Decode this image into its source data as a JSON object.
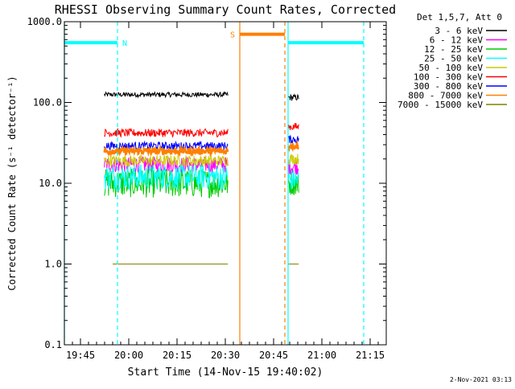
{
  "chart_data": {
    "type": "line",
    "title": "RHESSI Observing Summary Count Rates, Corrected",
    "xlabel": "Start Time (14-Nov-15 19:40:02)",
    "ylabel": "Corrected Count Rate (s⁻¹ detector⁻¹)",
    "yscale": "log",
    "ylim": [
      0.1,
      1000
    ],
    "xlim_minutes": [
      0,
      100
    ],
    "x_ticks": [
      {
        "t": 5,
        "label": "19:45"
      },
      {
        "t": 20,
        "label": "20:00"
      },
      {
        "t": 35,
        "label": "20:15"
      },
      {
        "t": 50,
        "label": "20:30"
      },
      {
        "t": 65,
        "label": "20:45"
      },
      {
        "t": 80,
        "label": "21:00"
      },
      {
        "t": 95,
        "label": "21:15"
      }
    ],
    "y_ticks": [
      {
        "v": 0.1,
        "label": "0.1"
      },
      {
        "v": 1,
        "label": "1.0"
      },
      {
        "v": 10,
        "label": "10.0"
      },
      {
        "v": 100,
        "label": "100.0"
      },
      {
        "v": 1000,
        "label": "1000.0"
      }
    ],
    "legend_header": "Det 1,5,7, Att 0",
    "legend_position": "right",
    "footer": "2-Nov-2021 03:13",
    "series": [
      {
        "name": "3 - 6 keV",
        "color": "#000000",
        "segments": [
          {
            "t0": 12.4,
            "t1": 50.8,
            "level": 125,
            "noise": 0.03
          },
          {
            "t0": 69.5,
            "t1": 72.8,
            "level": 115,
            "noise": 0.04
          }
        ]
      },
      {
        "name": "6 - 12 keV",
        "color": "#ff00ff",
        "segments": [
          {
            "t0": 12.4,
            "t1": 50.8,
            "level": 17,
            "noise": 0.1
          },
          {
            "t0": 69.5,
            "t1": 72.8,
            "level": 16,
            "noise": 0.1
          }
        ]
      },
      {
        "name": "12 - 25 keV",
        "color": "#00cc00",
        "segments": [
          {
            "t0": 12.4,
            "t1": 50.8,
            "level": 10,
            "noise": 0.18
          },
          {
            "t0": 69.5,
            "t1": 72.8,
            "level": 10,
            "noise": 0.15
          }
        ]
      },
      {
        "name": "25 - 50 keV",
        "color": "#00ffff",
        "segments": [
          {
            "t0": 12.4,
            "t1": 50.8,
            "level": 12,
            "noise": 0.16
          },
          {
            "t0": 69.5,
            "t1": 72.8,
            "level": 11,
            "noise": 0.14
          }
        ]
      },
      {
        "name": "50 - 100 keV",
        "color": "#cccc00",
        "segments": [
          {
            "t0": 12.4,
            "t1": 50.8,
            "level": 19,
            "noise": 0.07
          },
          {
            "t0": 69.5,
            "t1": 72.8,
            "level": 20,
            "noise": 0.07
          }
        ]
      },
      {
        "name": "100 - 300 keV",
        "color": "#ff0000",
        "segments": [
          {
            "t0": 12.4,
            "t1": 50.8,
            "level": 42,
            "noise": 0.05
          },
          {
            "t0": 69.5,
            "t1": 72.8,
            "level": 50,
            "noise": 0.05
          }
        ]
      },
      {
        "name": "300 - 800 keV",
        "color": "#0000ff",
        "segments": [
          {
            "t0": 12.4,
            "t1": 50.8,
            "level": 29,
            "noise": 0.05
          },
          {
            "t0": 69.5,
            "t1": 72.8,
            "level": 35,
            "noise": 0.05
          }
        ]
      },
      {
        "name": "800 - 7000 keV",
        "color": "#ff7f00",
        "segments": [
          {
            "t0": 12.4,
            "t1": 50.8,
            "level": 25,
            "noise": 0.04
          },
          {
            "t0": 69.5,
            "t1": 72.8,
            "level": 29,
            "noise": 0.04
          }
        ]
      },
      {
        "name": "7000 - 15000 keV",
        "color": "#808000",
        "segments": [
          {
            "t0": 15.0,
            "t1": 50.8,
            "level": 1.0,
            "noise": 0.0
          },
          {
            "t0": 69.5,
            "t1": 72.8,
            "level": 1.0,
            "noise": 0.0
          }
        ]
      }
    ],
    "annotations": [
      {
        "label": "N",
        "color": "#00ffff",
        "bar_level": 550,
        "bar_from": 0,
        "bar_to": 16.5,
        "lines": [
          {
            "t": 0,
            "style": "solid"
          },
          {
            "t": 16.5,
            "style": "dashed"
          }
        ]
      },
      {
        "label": "S",
        "color": "#ff7f00",
        "bar_level": 700,
        "bar_from": 54.5,
        "bar_to": 68.5,
        "lines": [
          {
            "t": 54.5,
            "style": "solid"
          },
          {
            "t": 68.5,
            "style": "dashed"
          }
        ]
      },
      {
        "label": "",
        "color": "#00ffff",
        "bar_level": 550,
        "bar_from": 69.5,
        "bar_to": 93.0,
        "lines": [
          {
            "t": 69.5,
            "style": "solid"
          },
          {
            "t": 93.0,
            "style": "dashed"
          }
        ]
      }
    ]
  }
}
